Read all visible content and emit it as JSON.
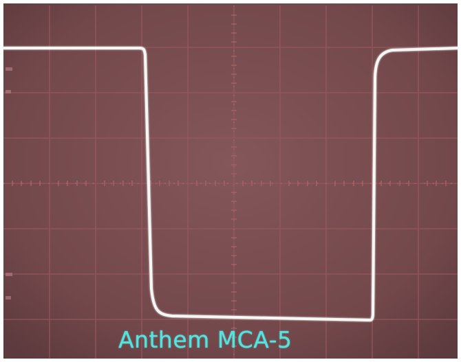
{
  "caption": "Anthem MCA-5",
  "colors": {
    "screen": "#7a4c4f",
    "screen_dark": "#5e3a3c",
    "grid": "#9b5a60",
    "trace": "#f4f7f4",
    "caption": "#55e3df"
  },
  "scope": {
    "divisions_horizontal": 10,
    "divisions_vertical": 8,
    "waveform": "square"
  }
}
